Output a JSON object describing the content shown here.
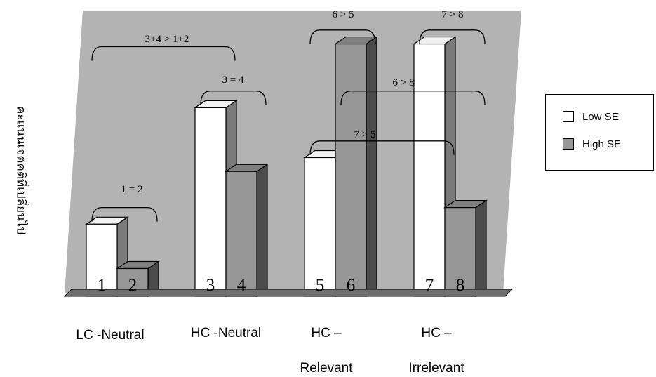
{
  "chart_data": {
    "type": "bar",
    "title": "",
    "ylabel": "คะแนนเจตคติที่เปลี่ยนไป",
    "xlabel": "",
    "ylim": [
      0,
      10
    ],
    "grid": false,
    "legend_position": "right",
    "categories": [
      {
        "line1": "LC -Neutral",
        "line2": ""
      },
      {
        "line1": "HC -Neutral",
        "line2": ""
      },
      {
        "line1": "HC –",
        "line2": "Relevant"
      },
      {
        "line1": "HC –",
        "line2": "Irrelevant"
      }
    ],
    "series": [
      {
        "name": "Low SE",
        "color": "#ffffff",
        "values": [
          2.6,
          6.8,
          5.0,
          9.1
        ],
        "bar_labels": [
          "1",
          "3",
          "5",
          "7"
        ]
      },
      {
        "name": "High SE",
        "color": "#969696",
        "values": [
          1.0,
          4.5,
          9.1,
          3.2
        ],
        "bar_labels": [
          "2",
          "4",
          "6",
          "8"
        ]
      }
    ],
    "annotations": [
      {
        "text": "3+4 > 1+2",
        "from": [
          0,
          0
        ],
        "to": [
          1,
          0
        ],
        "y": 9.0
      },
      {
        "text": "1 = 2",
        "from": [
          0,
          0
        ],
        "to": [
          0,
          1
        ],
        "y": 3.2
      },
      {
        "text": "3 = 4",
        "from": [
          1,
          0
        ],
        "to": [
          1,
          1
        ],
        "y": 7.4
      },
      {
        "text": "6 > 5",
        "from": [
          2,
          0
        ],
        "to": [
          2,
          1
        ],
        "y": 9.6
      },
      {
        "text": "7 > 8",
        "from": [
          3,
          0
        ],
        "to": [
          3,
          1
        ],
        "y": 9.6
      },
      {
        "text": "6 > 8",
        "from": [
          2,
          1
        ],
        "to": [
          3,
          1
        ],
        "y": 7.4
      },
      {
        "text": "7 > 5",
        "from": [
          2,
          0
        ],
        "to": [
          3,
          0
        ],
        "y": 5.6
      }
    ]
  }
}
